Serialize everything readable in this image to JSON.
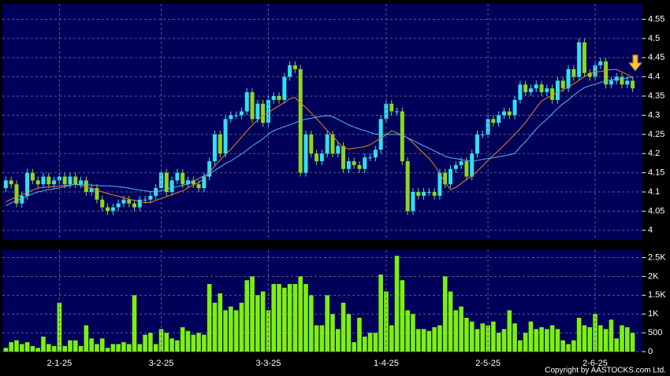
{
  "chart_data": [
    {
      "type": "candlestick",
      "up_color": "#33dff0",
      "down_color": "#8fd61f",
      "grid": true,
      "ylim": [
        3.975,
        4.59
      ],
      "yticks": [
        4,
        4.05,
        4.1,
        4.15,
        4.2,
        4.25,
        4.3,
        4.35,
        4.4,
        4.45,
        4.5,
        4.55
      ],
      "open": [
        4.11,
        4.13,
        4.12,
        4.07,
        4.09,
        4.15,
        4.13,
        4.12,
        4.14,
        4.12,
        4.13,
        4.14,
        4.12,
        4.14,
        4.12,
        4.13,
        4.1,
        4.11,
        4.08,
        4.06,
        4.05,
        4.06,
        4.07,
        4.08,
        4.07,
        4.06,
        4.08,
        4.08,
        4.09,
        4.11,
        4.15,
        4.1,
        4.13,
        4.15,
        4.12,
        4.13,
        4.12,
        4.11,
        4.14,
        4.18,
        4.25,
        4.2,
        4.29,
        4.3,
        4.3,
        4.31,
        4.36,
        4.29,
        4.33,
        4.28,
        4.34,
        4.35,
        4.34,
        4.4,
        4.43,
        4.42,
        4.15,
        4.25,
        4.2,
        4.18,
        4.2,
        4.25,
        4.2,
        4.22,
        4.16,
        4.18,
        4.17,
        4.16,
        4.19,
        4.19,
        4.21,
        4.29,
        4.33,
        4.31,
        4.31,
        4.18,
        4.05,
        4.1,
        4.09,
        4.1,
        4.1,
        4.09,
        4.15,
        4.12,
        4.16,
        4.17,
        4.18,
        4.14,
        4.2,
        4.25,
        4.25,
        4.29,
        4.28,
        4.3,
        4.31,
        4.3,
        4.34,
        4.38,
        4.36,
        4.37,
        4.38,
        4.36,
        4.37,
        4.34,
        4.39,
        4.37,
        4.42,
        4.4,
        4.49,
        4.41,
        4.4,
        4.43,
        4.44,
        4.38,
        4.39,
        4.4,
        4.38,
        4.39
      ],
      "high": [
        4.14,
        4.14,
        4.13,
        4.1,
        4.16,
        4.16,
        4.14,
        4.15,
        4.15,
        4.14,
        4.15,
        4.15,
        4.15,
        4.15,
        4.14,
        4.14,
        4.12,
        4.12,
        4.09,
        4.07,
        4.07,
        4.08,
        4.09,
        4.09,
        4.08,
        4.09,
        4.09,
        4.1,
        4.12,
        4.16,
        4.16,
        4.14,
        4.16,
        4.16,
        4.14,
        4.14,
        4.13,
        4.15,
        4.19,
        4.26,
        4.26,
        4.3,
        4.31,
        4.31,
        4.32,
        4.37,
        4.37,
        4.34,
        4.34,
        4.35,
        4.36,
        4.36,
        4.41,
        4.44,
        4.44,
        4.43,
        4.26,
        4.26,
        4.21,
        4.21,
        4.26,
        4.26,
        4.23,
        4.23,
        4.19,
        4.19,
        4.18,
        4.2,
        4.2,
        4.22,
        4.3,
        4.34,
        4.34,
        4.32,
        4.32,
        4.19,
        4.11,
        4.11,
        4.11,
        4.11,
        4.11,
        4.16,
        4.16,
        4.17,
        4.18,
        4.19,
        4.19,
        4.21,
        4.26,
        4.26,
        4.3,
        4.3,
        4.31,
        4.32,
        4.32,
        4.35,
        4.39,
        4.39,
        4.38,
        4.39,
        4.39,
        4.38,
        4.38,
        4.4,
        4.4,
        4.43,
        4.43,
        4.5,
        4.5,
        4.42,
        4.44,
        4.45,
        4.45,
        4.4,
        4.41,
        4.41,
        4.4,
        4.4
      ],
      "low": [
        4.1,
        4.11,
        4.06,
        4.06,
        4.08,
        4.12,
        4.11,
        4.11,
        4.11,
        4.11,
        4.12,
        4.11,
        4.11,
        4.11,
        4.11,
        4.09,
        4.09,
        4.07,
        4.05,
        4.04,
        4.04,
        4.05,
        4.06,
        4.06,
        4.05,
        4.05,
        4.07,
        4.07,
        4.08,
        4.1,
        4.09,
        4.09,
        4.12,
        4.11,
        4.11,
        4.11,
        4.1,
        4.1,
        4.13,
        4.17,
        4.19,
        4.19,
        4.28,
        4.29,
        4.29,
        4.3,
        4.28,
        4.28,
        4.27,
        4.27,
        4.33,
        4.33,
        4.33,
        4.39,
        4.41,
        4.14,
        4.14,
        4.19,
        4.17,
        4.17,
        4.19,
        4.19,
        4.19,
        4.15,
        4.15,
        4.16,
        4.15,
        4.15,
        4.18,
        4.18,
        4.2,
        4.28,
        4.3,
        4.3,
        4.17,
        4.04,
        4.04,
        4.08,
        4.08,
        4.09,
        4.08,
        4.08,
        4.11,
        4.11,
        4.15,
        4.16,
        4.13,
        4.13,
        4.19,
        4.24,
        4.24,
        4.27,
        4.27,
        4.29,
        4.29,
        4.29,
        4.33,
        4.35,
        4.35,
        4.36,
        4.35,
        4.35,
        4.33,
        4.33,
        4.36,
        4.36,
        4.39,
        4.39,
        4.4,
        4.39,
        4.39,
        4.42,
        4.37,
        4.37,
        4.38,
        4.37,
        4.37,
        4.36
      ],
      "close": [
        4.13,
        4.12,
        4.07,
        4.09,
        4.15,
        4.13,
        4.12,
        4.14,
        4.12,
        4.13,
        4.14,
        4.12,
        4.14,
        4.12,
        4.13,
        4.1,
        4.11,
        4.08,
        4.06,
        4.05,
        4.06,
        4.07,
        4.08,
        4.07,
        4.06,
        4.08,
        4.08,
        4.09,
        4.11,
        4.15,
        4.1,
        4.13,
        4.15,
        4.12,
        4.13,
        4.12,
        4.11,
        4.14,
        4.18,
        4.25,
        4.2,
        4.29,
        4.3,
        4.3,
        4.31,
        4.36,
        4.29,
        4.33,
        4.28,
        4.34,
        4.35,
        4.34,
        4.4,
        4.43,
        4.42,
        4.15,
        4.25,
        4.2,
        4.18,
        4.2,
        4.25,
        4.2,
        4.22,
        4.16,
        4.18,
        4.17,
        4.16,
        4.19,
        4.19,
        4.21,
        4.29,
        4.33,
        4.31,
        4.31,
        4.18,
        4.05,
        4.1,
        4.09,
        4.1,
        4.1,
        4.09,
        4.15,
        4.12,
        4.16,
        4.17,
        4.18,
        4.14,
        4.2,
        4.25,
        4.25,
        4.29,
        4.28,
        4.3,
        4.31,
        4.3,
        4.34,
        4.38,
        4.36,
        4.37,
        4.38,
        4.36,
        4.37,
        4.34,
        4.39,
        4.37,
        4.42,
        4.4,
        4.49,
        4.41,
        4.4,
        4.43,
        4.44,
        4.38,
        4.39,
        4.4,
        4.38,
        4.39,
        4.37
      ],
      "series": [
        {
          "color": "#e8861c",
          "values": [
            4.074,
            4.081,
            4.087,
            4.093,
            4.098,
            4.105,
            4.11,
            4.112,
            4.113,
            4.114,
            4.116,
            4.117,
            4.118,
            4.12,
            4.117,
            4.113,
            4.109,
            4.104,
            4.1,
            4.096,
            4.092,
            4.089,
            4.085,
            4.081,
            4.078,
            4.075,
            4.072,
            4.073,
            4.078,
            4.083,
            4.088,
            4.093,
            4.098,
            4.103,
            4.111,
            4.118,
            4.125,
            4.135,
            4.151,
            4.168,
            4.183,
            4.198,
            4.211,
            4.227,
            4.243,
            4.259,
            4.274,
            4.288,
            4.298,
            4.307,
            4.316,
            4.325,
            4.333,
            4.343,
            4.346,
            4.332,
            4.32,
            4.306,
            4.291,
            4.276,
            4.26,
            4.246,
            4.23,
            4.215,
            4.212,
            4.214,
            4.216,
            4.218,
            4.223,
            4.232,
            4.24,
            4.249,
            4.259,
            4.254,
            4.248,
            4.241,
            4.228,
            4.214,
            4.2,
            4.188,
            4.17,
            4.147,
            4.125,
            4.106,
            4.112,
            4.122,
            4.133,
            4.142,
            4.154,
            4.168,
            4.182,
            4.196,
            4.208,
            4.222,
            4.236,
            4.25,
            4.265,
            4.281,
            4.3,
            4.319,
            4.337,
            4.345,
            4.352,
            4.359,
            4.366,
            4.373,
            4.382,
            4.391,
            4.401,
            4.41,
            4.412,
            4.414,
            4.417,
            4.419,
            4.419,
            4.413,
            4.406,
            4.399
          ]
        },
        {
          "color": "#5ab8f0",
          "values": [
            4.064,
            4.071,
            4.077,
            4.083,
            4.089,
            4.095,
            4.1,
            4.103,
            4.106,
            4.108,
            4.111,
            4.114,
            4.117,
            4.12,
            4.119,
            4.119,
            4.118,
            4.117,
            4.116,
            4.116,
            4.115,
            4.114,
            4.112,
            4.11,
            4.107,
            4.105,
            4.103,
            4.101,
            4.1,
            4.104,
            4.107,
            4.111,
            4.114,
            4.117,
            4.121,
            4.128,
            4.135,
            4.142,
            4.148,
            4.156,
            4.165,
            4.174,
            4.181,
            4.19,
            4.199,
            4.209,
            4.22,
            4.229,
            4.239,
            4.25,
            4.26,
            4.265,
            4.27,
            4.275,
            4.28,
            4.286,
            4.29,
            4.292,
            4.295,
            4.297,
            4.299,
            4.296,
            4.289,
            4.282,
            4.275,
            4.269,
            4.264,
            4.26,
            4.255,
            4.251,
            4.25,
            4.25,
            4.25,
            4.25,
            4.248,
            4.241,
            4.234,
            4.227,
            4.22,
            4.214,
            4.207,
            4.2,
            4.193,
            4.189,
            4.187,
            4.184,
            4.182,
            4.18,
            4.182,
            4.185,
            4.187,
            4.189,
            4.192,
            4.194,
            4.197,
            4.2,
            4.217,
            4.231,
            4.248,
            4.264,
            4.278,
            4.29,
            4.304,
            4.318,
            4.33,
            4.34,
            4.352,
            4.363,
            4.372,
            4.377,
            4.381,
            4.385,
            4.39,
            4.392,
            4.393,
            4.395,
            4.397,
            4.399
          ]
        }
      ]
    },
    {
      "type": "bar",
      "color": "#7df00e",
      "grid": true,
      "categories": [
        null,
        null,
        null,
        null,
        null,
        null,
        null,
        null,
        null,
        null,
        "2-1-25",
        null,
        null,
        null,
        null,
        null,
        null,
        null,
        null,
        null,
        null,
        null,
        null,
        null,
        null,
        null,
        null,
        null,
        null,
        "3-2-25",
        null,
        null,
        null,
        null,
        null,
        null,
        null,
        null,
        null,
        null,
        null,
        null,
        null,
        null,
        null,
        null,
        null,
        null,
        null,
        "3-3-25",
        null,
        null,
        null,
        null,
        null,
        null,
        null,
        null,
        null,
        null,
        null,
        null,
        null,
        null,
        null,
        null,
        null,
        null,
        null,
        null,
        null,
        "1-4-25",
        null,
        null,
        null,
        null,
        null,
        null,
        null,
        null,
        null,
        null,
        null,
        null,
        null,
        null,
        null,
        null,
        null,
        null,
        "2-5-25",
        null,
        null,
        null,
        null,
        null,
        null,
        null,
        null,
        null,
        null,
        null,
        null,
        null,
        null,
        null,
        null,
        null,
        null,
        null,
        "2-6-25",
        null,
        null,
        null,
        null,
        null,
        null,
        null
      ],
      "values": [
        100,
        250,
        300,
        200,
        250,
        150,
        100,
        400,
        200,
        150,
        1300,
        150,
        300,
        300,
        150,
        700,
        350,
        200,
        350,
        100,
        200,
        200,
        250,
        200,
        1500,
        200,
        450,
        500,
        200,
        600,
        500,
        350,
        300,
        650,
        550,
        450,
        500,
        450,
        1800,
        1300,
        1550,
        1100,
        1200,
        1100,
        1300,
        1900,
        2000,
        1500,
        1600,
        1100,
        1800,
        1800,
        1700,
        1800,
        1800,
        2000,
        1800,
        1500,
        700,
        700,
        1500,
        1000,
        600,
        1300,
        1000,
        250,
        900,
        400,
        500,
        500,
        2050,
        1600,
        700,
        2550,
        1900,
        1100,
        1000,
        600,
        600,
        550,
        650,
        700,
        2000,
        1600,
        1100,
        1200,
        900,
        800,
        600,
        750,
        700,
        800,
        500,
        600,
        1100,
        750,
        300,
        500,
        800,
        600,
        650,
        600,
        700,
        600,
        300,
        200,
        300,
        900,
        700,
        650,
        1000,
        700,
        600,
        850,
        350,
        700,
        650,
        500
      ],
      "ylim": [
        0,
        2700
      ],
      "yticks": [
        0,
        500,
        {
          "value": 1000,
          "label": "1K"
        },
        {
          "value": 1500,
          "label": "1.5K"
        },
        {
          "value": 2000,
          "label": "2K"
        },
        {
          "value": 2500,
          "label": "2.5K"
        }
      ]
    }
  ],
  "copyright": "Copyright by AASTOCKS.com Ltd."
}
